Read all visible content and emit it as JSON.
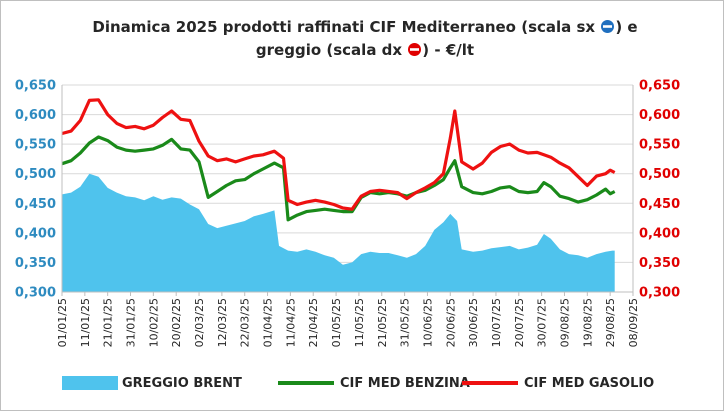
{
  "chart_data": {
    "type": "area",
    "title_line1": "Dinamica 2025 prodotti raffinati CIF Mediterraneo (scala sx ",
    "title_mid": ") e",
    "title_line2": "greggio (scala dx ",
    "title_end": ") - €/lt",
    "left_axis": {
      "ylim": [
        0.3,
        0.65
      ],
      "ticks": [
        "0,300",
        "0,350",
        "0,400",
        "0,450",
        "0,500",
        "0,550",
        "0,600",
        "0,650"
      ],
      "color": "#2e8bc0"
    },
    "right_axis": {
      "ylim": [
        0.3,
        0.65
      ],
      "ticks": [
        "0,300",
        "0,350",
        "0,400",
        "0,450",
        "0,500",
        "0,550",
        "0,600",
        "0,650"
      ],
      "color": "#e00000"
    },
    "x_ticks": [
      "01/01/25",
      "11/01/25",
      "21/01/25",
      "31/01/25",
      "10/02/25",
      "20/02/25",
      "02/03/25",
      "12/03/25",
      "22/03/25",
      "01/04/25",
      "11/04/25",
      "21/04/25",
      "01/05/25",
      "11/05/25",
      "21/05/25",
      "31/05/25",
      "10/06/25",
      "20/06/25",
      "30/06/25",
      "10/07/25",
      "20/07/25",
      "30/07/25",
      "09/08/25",
      "19/08/25",
      "29/08/25",
      "08/09/25"
    ],
    "x_start": "01/01/25",
    "x_end": "08/09/25",
    "grid": true,
    "legend_position": "bottom",
    "series": [
      {
        "name": "GREGGIO BRENT",
        "style": "area",
        "color": "#4fc3ed",
        "points": [
          [
            "01/01/25",
            0.465
          ],
          [
            "05/01/25",
            0.468
          ],
          [
            "09/01/25",
            0.478
          ],
          [
            "13/01/25",
            0.5
          ],
          [
            "17/01/25",
            0.495
          ],
          [
            "21/01/25",
            0.476
          ],
          [
            "25/01/25",
            0.468
          ],
          [
            "29/01/25",
            0.462
          ],
          [
            "02/02/25",
            0.46
          ],
          [
            "06/02/25",
            0.455
          ],
          [
            "10/02/25",
            0.462
          ],
          [
            "14/02/25",
            0.456
          ],
          [
            "18/02/25",
            0.46
          ],
          [
            "22/02/25",
            0.458
          ],
          [
            "26/02/25",
            0.448
          ],
          [
            "02/03/25",
            0.44
          ],
          [
            "06/03/25",
            0.415
          ],
          [
            "10/03/25",
            0.408
          ],
          [
            "14/03/25",
            0.412
          ],
          [
            "18/03/25",
            0.416
          ],
          [
            "22/03/25",
            0.42
          ],
          [
            "26/03/25",
            0.428
          ],
          [
            "30/03/25",
            0.432
          ],
          [
            "04/04/25",
            0.438
          ],
          [
            "06/04/25",
            0.378
          ],
          [
            "10/04/25",
            0.37
          ],
          [
            "14/04/25",
            0.368
          ],
          [
            "18/04/25",
            0.372
          ],
          [
            "22/04/25",
            0.368
          ],
          [
            "26/04/25",
            0.362
          ],
          [
            "30/04/25",
            0.358
          ],
          [
            "04/05/25",
            0.346
          ],
          [
            "08/05/25",
            0.35
          ],
          [
            "12/05/25",
            0.364
          ],
          [
            "16/05/25",
            0.368
          ],
          [
            "20/05/25",
            0.366
          ],
          [
            "24/05/25",
            0.366
          ],
          [
            "28/05/25",
            0.362
          ],
          [
            "01/06/25",
            0.358
          ],
          [
            "05/06/25",
            0.364
          ],
          [
            "09/06/25",
            0.378
          ],
          [
            "13/06/25",
            0.405
          ],
          [
            "17/06/25",
            0.418
          ],
          [
            "20/06/25",
            0.432
          ],
          [
            "23/06/25",
            0.42
          ],
          [
            "25/06/25",
            0.372
          ],
          [
            "30/06/25",
            0.368
          ],
          [
            "04/07/25",
            0.37
          ],
          [
            "08/07/25",
            0.374
          ],
          [
            "12/07/25",
            0.376
          ],
          [
            "16/07/25",
            0.378
          ],
          [
            "20/07/25",
            0.372
          ],
          [
            "24/07/25",
            0.375
          ],
          [
            "28/07/25",
            0.38
          ],
          [
            "31/07/25",
            0.398
          ],
          [
            "03/08/25",
            0.39
          ],
          [
            "07/08/25",
            0.372
          ],
          [
            "11/08/25",
            0.364
          ],
          [
            "15/08/25",
            0.362
          ],
          [
            "19/08/25",
            0.358
          ],
          [
            "23/08/25",
            0.364
          ],
          [
            "27/08/25",
            0.368
          ],
          [
            "30/08/25",
            0.37
          ],
          [
            "31/08/25",
            0.37
          ]
        ]
      },
      {
        "name": "CIF MED BENZINA",
        "style": "line",
        "color": "#1a8a1a",
        "axis": "left",
        "points": [
          [
            "01/01/25",
            0.517
          ],
          [
            "05/01/25",
            0.522
          ],
          [
            "09/01/25",
            0.535
          ],
          [
            "13/01/25",
            0.552
          ],
          [
            "17/01/25",
            0.562
          ],
          [
            "21/01/25",
            0.556
          ],
          [
            "25/01/25",
            0.545
          ],
          [
            "29/01/25",
            0.54
          ],
          [
            "02/02/25",
            0.538
          ],
          [
            "06/02/25",
            0.54
          ],
          [
            "10/02/25",
            0.542
          ],
          [
            "14/02/25",
            0.548
          ],
          [
            "18/02/25",
            0.558
          ],
          [
            "22/02/25",
            0.542
          ],
          [
            "26/02/25",
            0.54
          ],
          [
            "02/03/25",
            0.52
          ],
          [
            "06/03/25",
            0.46
          ],
          [
            "10/03/25",
            0.47
          ],
          [
            "14/03/25",
            0.48
          ],
          [
            "18/03/25",
            0.488
          ],
          [
            "22/03/25",
            0.49
          ],
          [
            "26/03/25",
            0.5
          ],
          [
            "30/03/25",
            0.508
          ],
          [
            "04/04/25",
            0.518
          ],
          [
            "08/04/25",
            0.51
          ],
          [
            "10/04/25",
            0.422
          ],
          [
            "14/04/25",
            0.43
          ],
          [
            "18/04/25",
            0.436
          ],
          [
            "22/04/25",
            0.438
          ],
          [
            "26/04/25",
            0.44
          ],
          [
            "30/04/25",
            0.438
          ],
          [
            "04/05/25",
            0.436
          ],
          [
            "08/05/25",
            0.436
          ],
          [
            "12/05/25",
            0.46
          ],
          [
            "16/05/25",
            0.468
          ],
          [
            "20/05/25",
            0.466
          ],
          [
            "24/05/25",
            0.468
          ],
          [
            "28/05/25",
            0.466
          ],
          [
            "01/06/25",
            0.462
          ],
          [
            "05/06/25",
            0.468
          ],
          [
            "09/06/25",
            0.472
          ],
          [
            "13/06/25",
            0.48
          ],
          [
            "17/06/25",
            0.49
          ],
          [
            "20/06/25",
            0.51
          ],
          [
            "22/06/25",
            0.522
          ],
          [
            "25/06/25",
            0.478
          ],
          [
            "30/06/25",
            0.468
          ],
          [
            "04/07/25",
            0.466
          ],
          [
            "08/07/25",
            0.47
          ],
          [
            "12/07/25",
            0.476
          ],
          [
            "16/07/25",
            0.478
          ],
          [
            "20/07/25",
            0.47
          ],
          [
            "24/07/25",
            0.468
          ],
          [
            "28/07/25",
            0.47
          ],
          [
            "31/07/25",
            0.485
          ],
          [
            "03/08/25",
            0.478
          ],
          [
            "07/08/25",
            0.462
          ],
          [
            "11/08/25",
            0.458
          ],
          [
            "15/08/25",
            0.452
          ],
          [
            "19/08/25",
            0.456
          ],
          [
            "23/08/25",
            0.464
          ],
          [
            "27/08/25",
            0.474
          ],
          [
            "29/08/25",
            0.466
          ],
          [
            "31/08/25",
            0.47
          ]
        ]
      },
      {
        "name": "CIF MED GASOLIO",
        "style": "line",
        "color": "#ee1111",
        "axis": "right",
        "points": [
          [
            "01/01/25",
            0.568
          ],
          [
            "05/01/25",
            0.572
          ],
          [
            "09/01/25",
            0.59
          ],
          [
            "13/01/25",
            0.624
          ],
          [
            "17/01/25",
            0.625
          ],
          [
            "21/01/25",
            0.6
          ],
          [
            "25/01/25",
            0.585
          ],
          [
            "29/01/25",
            0.578
          ],
          [
            "02/02/25",
            0.58
          ],
          [
            "06/02/25",
            0.576
          ],
          [
            "10/02/25",
            0.582
          ],
          [
            "14/02/25",
            0.595
          ],
          [
            "18/02/25",
            0.606
          ],
          [
            "22/02/25",
            0.592
          ],
          [
            "26/02/25",
            0.59
          ],
          [
            "02/03/25",
            0.555
          ],
          [
            "06/03/25",
            0.53
          ],
          [
            "10/03/25",
            0.522
          ],
          [
            "14/03/25",
            0.525
          ],
          [
            "18/03/25",
            0.52
          ],
          [
            "22/03/25",
            0.525
          ],
          [
            "26/03/25",
            0.53
          ],
          [
            "30/03/25",
            0.532
          ],
          [
            "04/04/25",
            0.538
          ],
          [
            "08/04/25",
            0.526
          ],
          [
            "10/04/25",
            0.455
          ],
          [
            "14/04/25",
            0.448
          ],
          [
            "18/04/25",
            0.452
          ],
          [
            "22/04/25",
            0.455
          ],
          [
            "26/04/25",
            0.452
          ],
          [
            "30/04/25",
            0.448
          ],
          [
            "04/05/25",
            0.442
          ],
          [
            "08/05/25",
            0.44
          ],
          [
            "12/05/25",
            0.462
          ],
          [
            "16/05/25",
            0.47
          ],
          [
            "20/05/25",
            0.472
          ],
          [
            "24/05/25",
            0.47
          ],
          [
            "28/05/25",
            0.468
          ],
          [
            "01/06/25",
            0.458
          ],
          [
            "05/06/25",
            0.468
          ],
          [
            "09/06/25",
            0.476
          ],
          [
            "13/06/25",
            0.485
          ],
          [
            "17/06/25",
            0.5
          ],
          [
            "20/06/25",
            0.56
          ],
          [
            "22/06/25",
            0.606
          ],
          [
            "25/06/25",
            0.52
          ],
          [
            "30/06/25",
            0.508
          ],
          [
            "04/07/25",
            0.518
          ],
          [
            "08/07/25",
            0.536
          ],
          [
            "12/07/25",
            0.546
          ],
          [
            "16/07/25",
            0.55
          ],
          [
            "20/07/25",
            0.54
          ],
          [
            "24/07/25",
            0.535
          ],
          [
            "28/07/25",
            0.536
          ],
          [
            "31/07/25",
            0.532
          ],
          [
            "03/08/25",
            0.528
          ],
          [
            "07/08/25",
            0.518
          ],
          [
            "11/08/25",
            0.51
          ],
          [
            "15/08/25",
            0.495
          ],
          [
            "19/08/25",
            0.48
          ],
          [
            "23/08/25",
            0.496
          ],
          [
            "27/08/25",
            0.5
          ],
          [
            "29/08/25",
            0.506
          ],
          [
            "31/08/25",
            0.502
          ]
        ]
      }
    ]
  }
}
